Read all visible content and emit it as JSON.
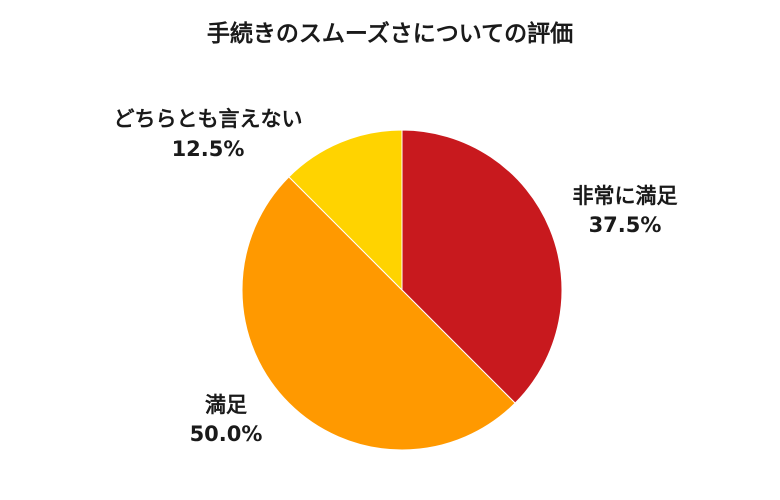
{
  "chart_data": {
    "type": "pie",
    "title": "手続きのスムーズさについての評価",
    "start_angle": "12 o'clock",
    "direction": "clockwise",
    "slices": [
      {
        "label": "非常に満足",
        "value": 37.5,
        "value_label": "37.5%",
        "color": "#c8191e"
      },
      {
        "label": "満足",
        "value": 50.0,
        "value_label": "50.0%",
        "color": "#ff9900"
      },
      {
        "label": "どちらとも言えない",
        "value": 12.5,
        "value_label": "12.5%",
        "color": "#ffd300"
      }
    ]
  }
}
